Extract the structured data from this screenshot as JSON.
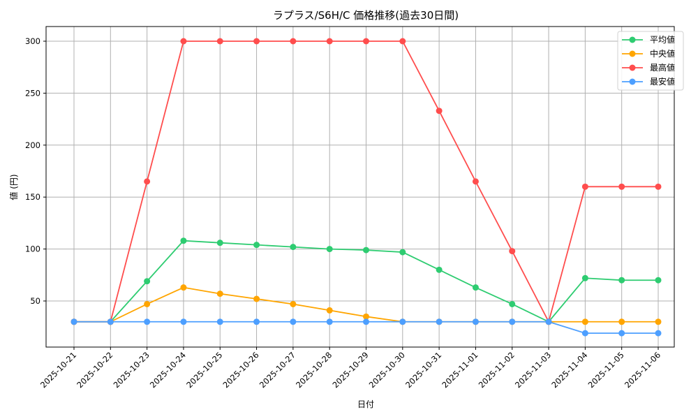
{
  "chart_data": {
    "type": "line",
    "title": "ラプラス/S6H/C 価格推移(過去30日間)",
    "xlabel": "日付",
    "ylabel": "値 (円)",
    "ylim": [
      12,
      314
    ],
    "yticks": [
      50,
      100,
      150,
      200,
      250,
      300
    ],
    "grid": true,
    "legend_position": "upper right",
    "categories": [
      "2025-10-21",
      "2025-10-22",
      "2025-10-23",
      "2025-10-24",
      "2025-10-25",
      "2025-10-26",
      "2025-10-27",
      "2025-10-28",
      "2025-10-29",
      "2025-10-30",
      "2025-10-31",
      "2025-11-01",
      "2025-11-02",
      "2025-11-03",
      "2025-11-04",
      "2025-11-05",
      "2025-11-06"
    ],
    "series": [
      {
        "name": "平均値",
        "color": "#2ecc71",
        "values": [
          30,
          30,
          69,
          108,
          106,
          104,
          102,
          100,
          99,
          97,
          80,
          63,
          47,
          30,
          72,
          70,
          70
        ]
      },
      {
        "name": "中央値",
        "color": "#ffa500",
        "values": [
          30,
          30,
          47,
          63,
          57,
          52,
          47,
          41,
          35,
          30,
          30,
          30,
          30,
          30,
          30,
          30,
          30
        ]
      },
      {
        "name": "最高値",
        "color": "#ff4d4d",
        "values": [
          30,
          30,
          165,
          300,
          300,
          300,
          300,
          300,
          300,
          300,
          233,
          165,
          98,
          30,
          160,
          160,
          160
        ]
      },
      {
        "name": "最安値",
        "color": "#4d9fff",
        "values": [
          30,
          30,
          30,
          30,
          30,
          30,
          30,
          30,
          30,
          30,
          30,
          30,
          30,
          30,
          19,
          19,
          19
        ]
      }
    ]
  }
}
